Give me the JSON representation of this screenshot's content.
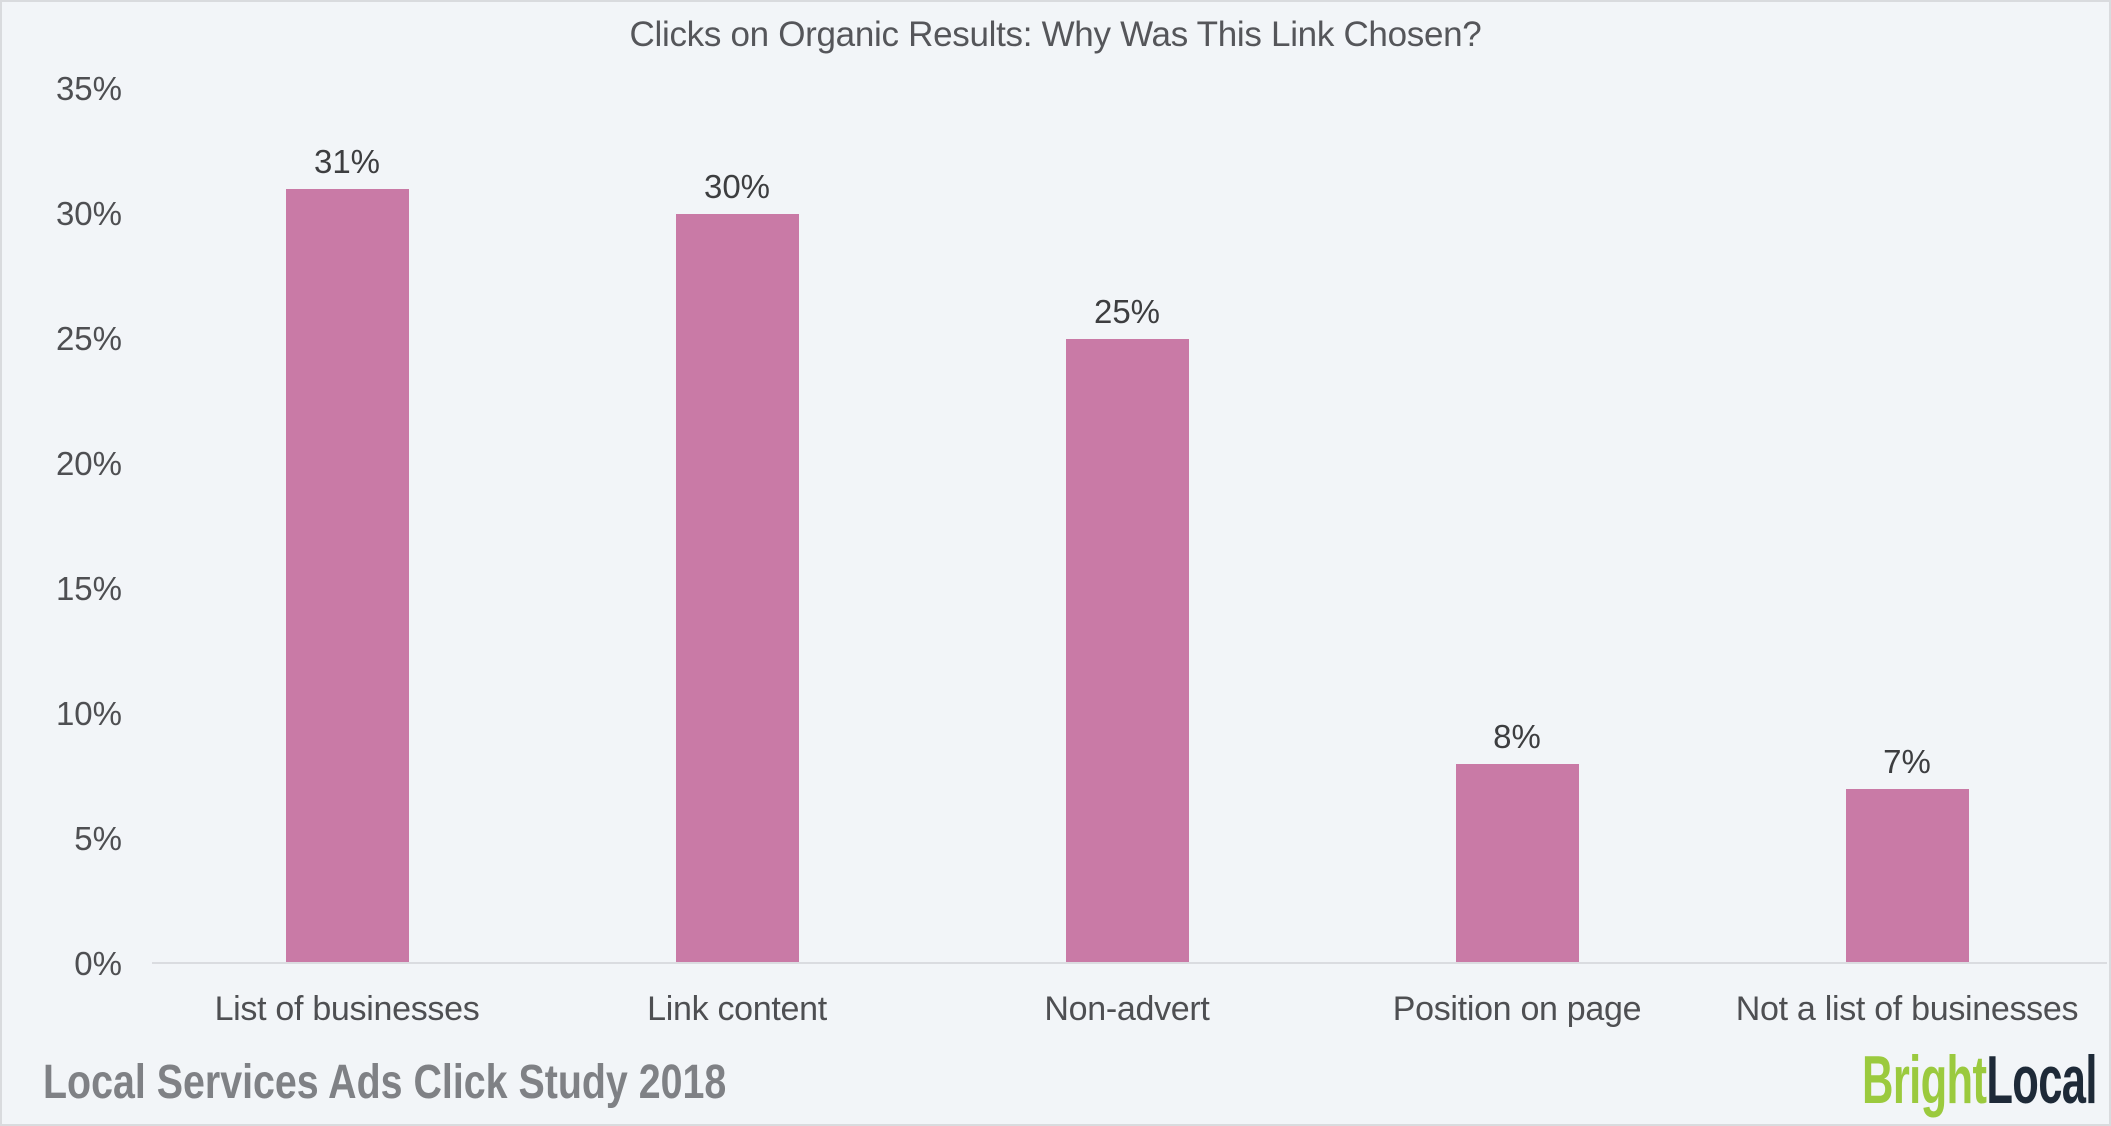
{
  "window": {
    "background_color": "#f2f5f8",
    "border_color": "#d9dbde"
  },
  "chart_data": {
    "type": "bar",
    "title": "Clicks on Organic Results: Why Was This Link Chosen?",
    "categories": [
      "List of businesses",
      "Link content",
      "Non-advert",
      "Position on page",
      "Not a list of businesses"
    ],
    "values": [
      31,
      30,
      25,
      8,
      7
    ],
    "value_labels": [
      "31%",
      "30%",
      "25%",
      "8%",
      "7%"
    ],
    "yticks": [
      "0%",
      "5%",
      "10%",
      "15%",
      "20%",
      "25%",
      "30%",
      "35%"
    ],
    "ylim": [
      0,
      35
    ],
    "xlabel": "",
    "ylabel": "",
    "grid": "off",
    "legend": "none",
    "bar_color": "#c97aa6",
    "value_label_color": "#3d3e40",
    "tick_label_color": "#4e4f52",
    "axis_line_color": "#dadce0",
    "title_color": "#55565a"
  },
  "footer": {
    "source_label": "Local Services Ads Click Study 2018",
    "color": "#7f8185"
  },
  "logo": {
    "part1": "Bright",
    "part2": "Local",
    "part1_color": "#9bca3e",
    "part2_color": "#1e2a38"
  }
}
